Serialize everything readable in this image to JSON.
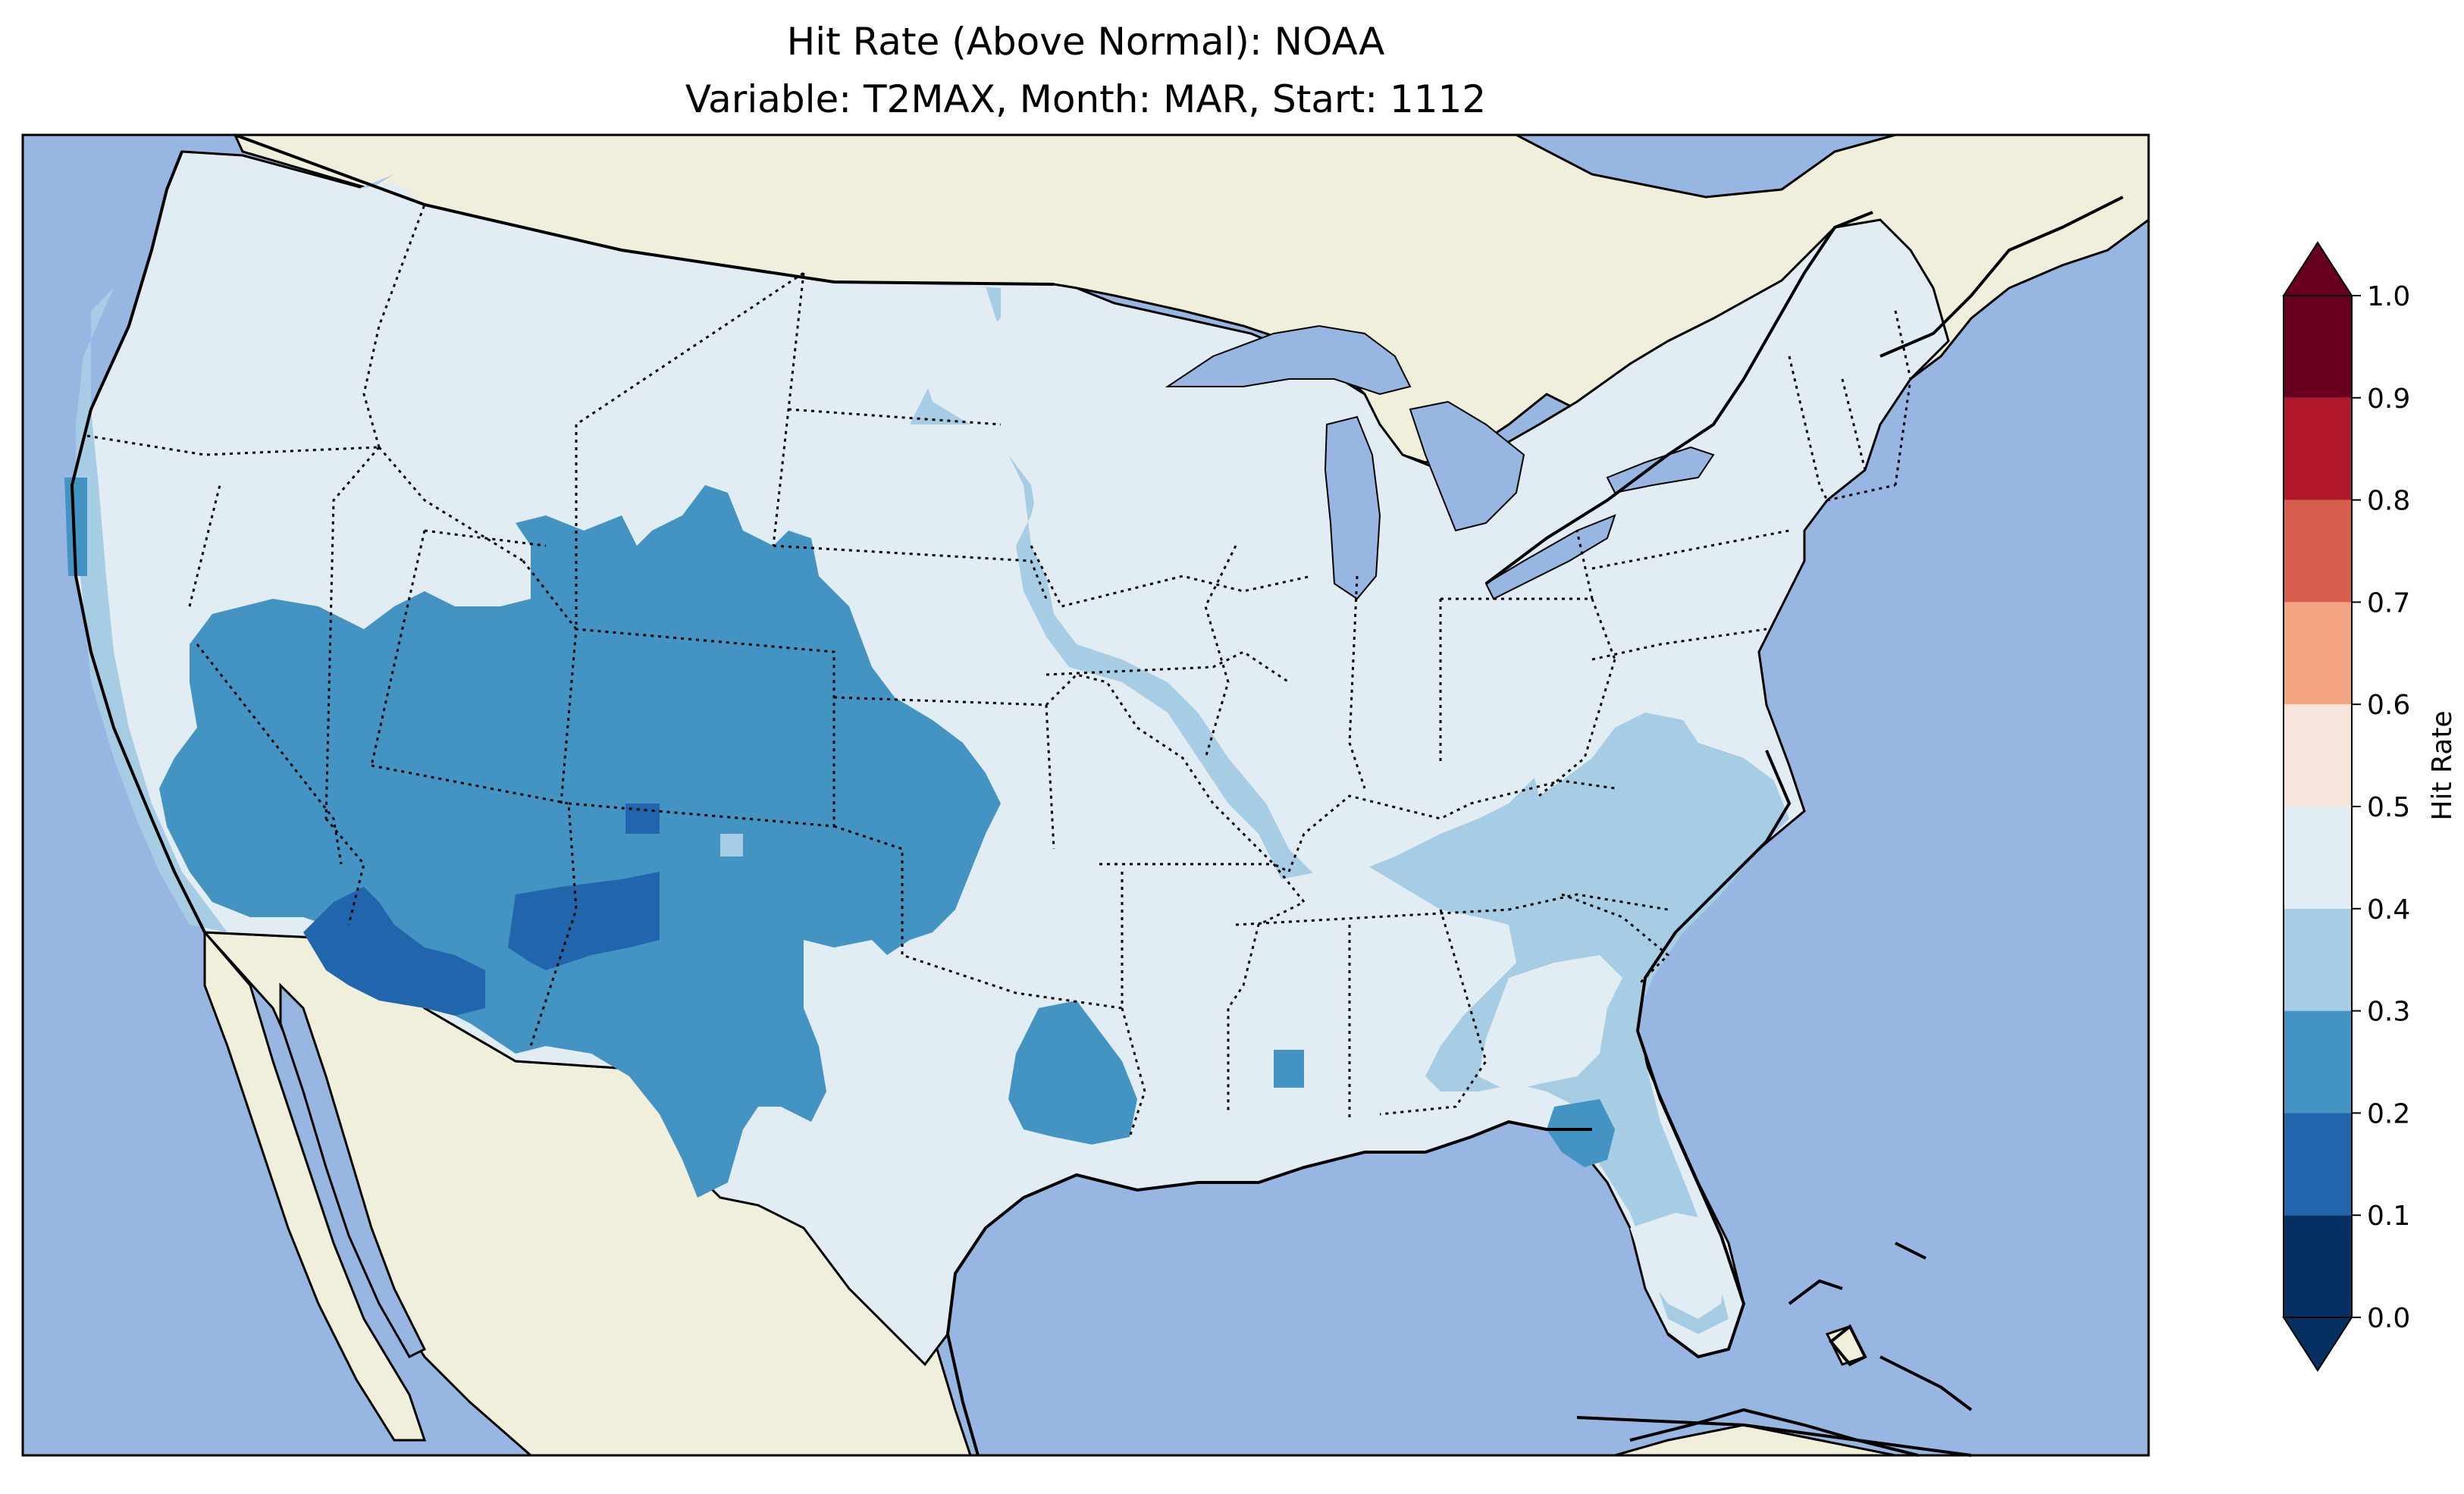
{
  "title": {
    "line1": "Hit Rate (Above Normal): NOAA",
    "line2": "Variable: T2MAX, Month: MAR, Start: 1112"
  },
  "colors": {
    "ocean": "#97b6e1",
    "land": "#efefdb",
    "lakes": "#97b6e1"
  },
  "colorbar": {
    "label": "Hit Rate",
    "ticks": [
      "0.0",
      "0.1",
      "0.2",
      "0.3",
      "0.4",
      "0.5",
      "0.6",
      "0.7",
      "0.8",
      "0.9",
      "1.0"
    ],
    "bins": [
      {
        "from": 0.0,
        "to": 0.1,
        "color": "#053061"
      },
      {
        "from": 0.1,
        "to": 0.2,
        "color": "#2166ac"
      },
      {
        "from": 0.2,
        "to": 0.3,
        "color": "#4393c3"
      },
      {
        "from": 0.3,
        "to": 0.4,
        "color": "#a6cde3"
      },
      {
        "from": 0.4,
        "to": 0.5,
        "color": "#e1ecf3"
      },
      {
        "from": 0.5,
        "to": 0.6,
        "color": "#f7e5dc"
      },
      {
        "from": 0.6,
        "to": 0.7,
        "color": "#f4a582"
      },
      {
        "from": 0.7,
        "to": 0.8,
        "color": "#d6604d"
      },
      {
        "from": 0.8,
        "to": 0.9,
        "color": "#b2182b"
      },
      {
        "from": 0.9,
        "to": 1.0,
        "color": "#67001f"
      }
    ],
    "under_color": "#053061",
    "over_color": "#67001f"
  }
}
